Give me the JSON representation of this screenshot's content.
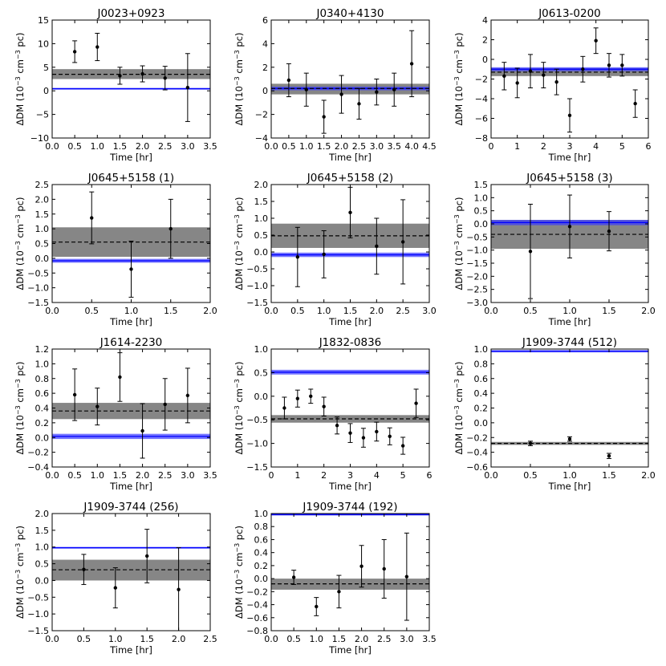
{
  "ylabel_main": "ΔDM (10",
  "ylabel_exp1": "−3",
  "ylabel_mid": " cm",
  "ylabel_exp2": "−3",
  "ylabel_tail": " pc)",
  "xlabel": "Time [hr]",
  "colors": {
    "band_gray": "#7f7f7f",
    "band_blue": "#3a3aff",
    "line_blue": "#0000ff",
    "points": "#000000"
  },
  "chart_data": [
    {
      "type": "scatter",
      "title": "J0023+0923",
      "xlabel": "Time [hr]",
      "xlim": [
        0,
        3.5
      ],
      "xticks": [
        "0.0",
        "0.5",
        "1.0",
        "1.5",
        "2.0",
        "2.5",
        "3.0",
        "3.5"
      ],
      "ylim": [
        -10,
        15
      ],
      "yticks": [
        "15",
        "10",
        "5",
        "0",
        "−5",
        "−10"
      ],
      "mean": 3.5,
      "gray_band": [
        2.5,
        4.6
      ],
      "blue_band": [
        0.3,
        0.6
      ],
      "points": [
        {
          "x": 0.5,
          "y": 8.3,
          "err": 2.3
        },
        {
          "x": 1.0,
          "y": 9.3,
          "err": 2.9
        },
        {
          "x": 1.5,
          "y": 3.2,
          "err": 1.8
        },
        {
          "x": 2.0,
          "y": 3.6,
          "err": 1.7
        },
        {
          "x": 2.5,
          "y": 2.7,
          "err": 2.5
        },
        {
          "x": 3.0,
          "y": 0.7,
          "err": 7.2
        }
      ]
    },
    {
      "type": "scatter",
      "title": "J0340+4130",
      "xlabel": "Time [hr]",
      "xlim": [
        0,
        4.5
      ],
      "xticks": [
        "0.0",
        "0.5",
        "1.0",
        "1.5",
        "2.0",
        "2.5",
        "3.0",
        "3.5",
        "4.0",
        "4.5"
      ],
      "ylim": [
        -4,
        6
      ],
      "yticks": [
        "6",
        "4",
        "2",
        "0",
        "−2",
        "−4"
      ],
      "mean": 0.2,
      "gray_band": [
        -0.3,
        0.6
      ],
      "blue_band": [
        0.05,
        0.35
      ],
      "points": [
        {
          "x": 0.5,
          "y": 0.9,
          "err": 1.4
        },
        {
          "x": 1.0,
          "y": 0.1,
          "err": 1.4
        },
        {
          "x": 1.5,
          "y": -2.2,
          "err": 1.4
        },
        {
          "x": 2.0,
          "y": -0.3,
          "err": 1.6
        },
        {
          "x": 2.5,
          "y": -1.1,
          "err": 1.3
        },
        {
          "x": 3.0,
          "y": -0.1,
          "err": 1.1
        },
        {
          "x": 3.5,
          "y": 0.1,
          "err": 1.4
        },
        {
          "x": 4.0,
          "y": 2.3,
          "err": 2.8
        }
      ]
    },
    {
      "type": "scatter",
      "title": "J0613-0200",
      "xlabel": "Time [hr]",
      "xlim": [
        0,
        6
      ],
      "xticks": [
        "0",
        "1",
        "2",
        "3",
        "4",
        "5",
        "6"
      ],
      "ylim": [
        -8,
        4
      ],
      "yticks": [
        "4",
        "2",
        "0",
        "−2",
        "−4",
        "−6",
        "−8"
      ],
      "mean": -1.3,
      "gray_band": [
        -1.7,
        -0.9
      ],
      "blue_band": [
        -1.2,
        -0.8
      ],
      "points": [
        {
          "x": 0.5,
          "y": -1.7,
          "err": 1.4
        },
        {
          "x": 1.0,
          "y": -2.4,
          "err": 1.5
        },
        {
          "x": 1.5,
          "y": -1.2,
          "err": 1.7
        },
        {
          "x": 2.0,
          "y": -1.6,
          "err": 1.3
        },
        {
          "x": 2.5,
          "y": -2.3,
          "err": 1.3
        },
        {
          "x": 3.0,
          "y": -5.7,
          "err": 1.7
        },
        {
          "x": 3.5,
          "y": -1.0,
          "err": 1.3
        },
        {
          "x": 4.0,
          "y": 1.9,
          "err": 1.3
        },
        {
          "x": 4.5,
          "y": -0.6,
          "err": 1.2
        },
        {
          "x": 5.0,
          "y": -0.6,
          "err": 1.1
        },
        {
          "x": 5.5,
          "y": -4.5,
          "err": 1.4
        }
      ]
    },
    {
      "type": "scatter",
      "title": "J0645+5158 (1)",
      "xlabel": "Time [hr]",
      "xlim": [
        0,
        2
      ],
      "xticks": [
        "0.0",
        "0.5",
        "1.0",
        "1.5",
        "2.0"
      ],
      "ylim": [
        -1.5,
        2.5
      ],
      "yticks": [
        "2.5",
        "2.0",
        "1.5",
        "1.0",
        "0.5",
        "0.0",
        "−0.5",
        "−1.0",
        "−1.5"
      ],
      "mean": 0.55,
      "gray_band": [
        0.05,
        1.05
      ],
      "blue_band": [
        -0.15,
        -0.02
      ],
      "points": [
        {
          "x": 0.5,
          "y": 1.37,
          "err": 0.88
        },
        {
          "x": 1.0,
          "y": -0.37,
          "err": 0.95
        },
        {
          "x": 1.5,
          "y": 1.0,
          "err": 1.0
        }
      ]
    },
    {
      "type": "scatter",
      "title": "J0645+5158 (2)",
      "xlabel": "Time [hr]",
      "xlim": [
        0,
        3
      ],
      "xticks": [
        "0.0",
        "0.5",
        "1.0",
        "1.5",
        "2.0",
        "2.5",
        "3.0"
      ],
      "ylim": [
        -1.5,
        2.0
      ],
      "yticks": [
        "2.0",
        "1.5",
        "1.0",
        "0.5",
        "0.0",
        "−0.5",
        "−1.0",
        "−1.5"
      ],
      "mean": 0.48,
      "gray_band": [
        0.12,
        0.84
      ],
      "blue_band": [
        -0.15,
        -0.02
      ],
      "points": [
        {
          "x": 0.5,
          "y": -0.15,
          "err": 0.88
        },
        {
          "x": 1.0,
          "y": -0.07,
          "err": 0.7
        },
        {
          "x": 1.5,
          "y": 1.17,
          "err": 0.75
        },
        {
          "x": 2.0,
          "y": 0.17,
          "err": 0.83
        },
        {
          "x": 2.5,
          "y": 0.3,
          "err": 1.25
        }
      ]
    },
    {
      "type": "scatter",
      "title": "J0645+5158 (3)",
      "xlabel": "Time [hr]",
      "xlim": [
        0,
        2
      ],
      "xticks": [
        "0.0",
        "0.5",
        "1.0",
        "1.5",
        "2.0"
      ],
      "ylim": [
        -3.0,
        1.5
      ],
      "yticks": [
        "1.5",
        "1.0",
        "0.5",
        "0.0",
        "−0.5",
        "−1.0",
        "−1.5",
        "−2.0",
        "−2.5",
        "−3.0"
      ],
      "mean": -0.4,
      "gray_band": [
        -0.95,
        0.15
      ],
      "blue_band": [
        -0.05,
        0.15
      ],
      "points": [
        {
          "x": 0.5,
          "y": -1.05,
          "err": 1.8
        },
        {
          "x": 1.0,
          "y": -0.1,
          "err": 1.2
        },
        {
          "x": 1.5,
          "y": -0.28,
          "err": 0.75
        }
      ]
    },
    {
      "type": "scatter",
      "title": "J1614-2230",
      "xlabel": "Time [hr]",
      "xlim": [
        0,
        3.5
      ],
      "xticks": [
        "0.0",
        "0.5",
        "1.0",
        "1.5",
        "2.0",
        "2.5",
        "3.0",
        "3.5"
      ],
      "ylim": [
        -0.4,
        1.2
      ],
      "yticks": [
        "1.2",
        "1.0",
        "0.8",
        "0.6",
        "0.4",
        "0.2",
        "0.0",
        "−0.2",
        "−0.4"
      ],
      "mean": 0.36,
      "gray_band": [
        0.25,
        0.47
      ],
      "blue_band": [
        -0.02,
        0.05
      ],
      "points": [
        {
          "x": 0.5,
          "y": 0.58,
          "err": 0.35
        },
        {
          "x": 1.0,
          "y": 0.42,
          "err": 0.25
        },
        {
          "x": 1.5,
          "y": 0.82,
          "err": 0.33
        },
        {
          "x": 2.0,
          "y": 0.09,
          "err": 0.37
        },
        {
          "x": 2.5,
          "y": 0.45,
          "err": 0.35
        },
        {
          "x": 3.0,
          "y": 0.57,
          "err": 0.37
        }
      ]
    },
    {
      "type": "scatter",
      "title": "J1832-0836",
      "xlabel": "Time [hr]",
      "xlim": [
        0,
        6
      ],
      "xticks": [
        "0",
        "1",
        "2",
        "3",
        "4",
        "5",
        "6"
      ],
      "ylim": [
        -1.5,
        1.0
      ],
      "yticks": [
        "1.0",
        "0.5",
        "0.0",
        "−0.5",
        "−1.0",
        "−1.5"
      ],
      "mean": -0.48,
      "gray_band": [
        -0.56,
        -0.4
      ],
      "blue_band": [
        0.46,
        0.56
      ],
      "points": [
        {
          "x": 0.5,
          "y": -0.25,
          "err": 0.23
        },
        {
          "x": 1.0,
          "y": -0.05,
          "err": 0.18
        },
        {
          "x": 1.5,
          "y": 0.0,
          "err": 0.15
        },
        {
          "x": 2.0,
          "y": -0.22,
          "err": 0.2
        },
        {
          "x": 2.5,
          "y": -0.62,
          "err": 0.18
        },
        {
          "x": 3.0,
          "y": -0.78,
          "err": 0.2
        },
        {
          "x": 3.5,
          "y": -0.88,
          "err": 0.2
        },
        {
          "x": 4.0,
          "y": -0.75,
          "err": 0.2
        },
        {
          "x": 4.5,
          "y": -0.85,
          "err": 0.18
        },
        {
          "x": 5.0,
          "y": -1.05,
          "err": 0.18
        },
        {
          "x": 5.5,
          "y": -0.15,
          "err": 0.3
        }
      ]
    },
    {
      "type": "scatter",
      "title": "J1909-3744 (512)",
      "xlabel": "Time [hr]",
      "xlim": [
        0,
        2
      ],
      "xticks": [
        "0.0",
        "0.5",
        "1.0",
        "1.5",
        "2.0"
      ],
      "ylim": [
        -0.6,
        1.0
      ],
      "yticks": [
        "1.0",
        "0.8",
        "0.6",
        "0.4",
        "0.2",
        "0.0",
        "−0.2",
        "−0.4",
        "−0.6"
      ],
      "mean": -0.28,
      "gray_band": [
        -0.3,
        -0.26
      ],
      "blue_band": [
        0.955,
        0.985
      ],
      "points": [
        {
          "x": 0.5,
          "y": -0.28,
          "err": 0.03
        },
        {
          "x": 1.0,
          "y": -0.22,
          "err": 0.03
        },
        {
          "x": 1.5,
          "y": -0.45,
          "err": 0.035
        }
      ]
    },
    {
      "type": "scatter",
      "title": "J1909-3744 (256)",
      "xlabel": "Time [hr]",
      "xlim": [
        0,
        2.5
      ],
      "xticks": [
        "0.0",
        "0.5",
        "1.0",
        "1.5",
        "2.0",
        "2.5"
      ],
      "ylim": [
        -1.5,
        2.0
      ],
      "yticks": [
        "2.0",
        "1.5",
        "1.0",
        "0.5",
        "0.0",
        "−0.5",
        "−1.0",
        "−1.5"
      ],
      "mean": 0.32,
      "gray_band": [
        0.0,
        0.62
      ],
      "blue_band": [
        0.96,
        1.0
      ],
      "points": [
        {
          "x": 0.5,
          "y": 0.33,
          "err": 0.45
        },
        {
          "x": 1.0,
          "y": -0.22,
          "err": 0.6
        },
        {
          "x": 1.5,
          "y": 0.73,
          "err": 0.8
        },
        {
          "x": 2.0,
          "y": -0.27,
          "err": 1.25
        }
      ]
    },
    {
      "type": "scatter",
      "title": "J1909-3744 (192)",
      "xlabel": "Time [hr]",
      "xlim": [
        0,
        3.5
      ],
      "xticks": [
        "0.0",
        "0.5",
        "1.0",
        "1.5",
        "2.0",
        "2.5",
        "3.0",
        "3.5"
      ],
      "ylim": [
        -0.8,
        1.0
      ],
      "yticks": [
        "1.0",
        "0.8",
        "0.6",
        "0.4",
        "0.2",
        "0.0",
        "−0.2",
        "−0.4",
        "−0.6",
        "−0.8"
      ],
      "mean": -0.08,
      "gray_band": [
        -0.17,
        0.0
      ],
      "blue_band": [
        0.97,
        1.0
      ],
      "points": [
        {
          "x": 0.5,
          "y": 0.02,
          "err": 0.11
        },
        {
          "x": 1.0,
          "y": -0.43,
          "err": 0.14
        },
        {
          "x": 1.5,
          "y": -0.2,
          "err": 0.25
        },
        {
          "x": 2.0,
          "y": 0.19,
          "err": 0.32
        },
        {
          "x": 2.5,
          "y": 0.15,
          "err": 0.45
        },
        {
          "x": 3.0,
          "y": 0.03,
          "err": 0.67
        }
      ]
    }
  ]
}
